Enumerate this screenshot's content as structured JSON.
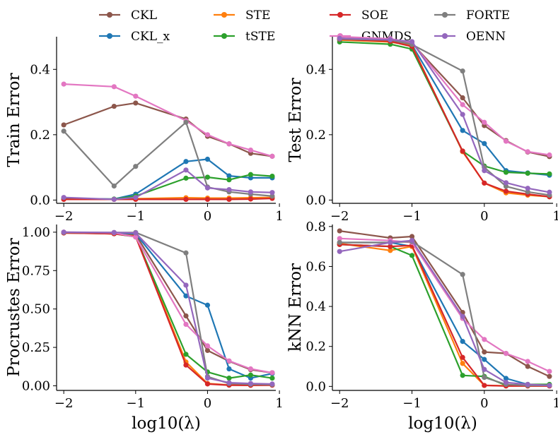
{
  "chart_data": [
    {
      "type": "line",
      "panel": "top-left",
      "title": "",
      "xlabel": "",
      "ylabel": "Train Error",
      "xlim": [
        -2.1,
        0.95
      ],
      "ylim": [
        -0.01,
        0.5
      ],
      "xticks": [
        -2,
        -1,
        0,
        1
      ],
      "xtick_labels": [
        "−2",
        "−1",
        "0",
        "1"
      ],
      "yticks": [
        0.0,
        0.2,
        0.4
      ],
      "ytick_labels": [
        "0.0",
        "0.2",
        "0.4"
      ],
      "x": [
        -2,
        -1.3,
        -1,
        -0.3,
        0,
        0.3,
        0.6,
        0.9
      ],
      "series": [
        {
          "name": "CKL",
          "values": [
            0.23,
            0.287,
            0.297,
            0.248,
            0.195,
            0.172,
            0.143,
            0.134
          ]
        },
        {
          "name": "CKL_x",
          "values": [
            0.004,
            0.003,
            0.018,
            0.118,
            0.125,
            0.074,
            0.068,
            0.068
          ]
        },
        {
          "name": "STE",
          "values": [
            0.003,
            0.002,
            0.004,
            0.007,
            0.006,
            0.006,
            0.007,
            0.008
          ]
        },
        {
          "name": "tSTE",
          "values": [
            0.004,
            0.003,
            0.012,
            0.067,
            0.07,
            0.062,
            0.078,
            0.073
          ]
        },
        {
          "name": "SOE",
          "values": [
            0.002,
            0.002,
            0.002,
            0.002,
            0.002,
            0.002,
            0.003,
            0.005
          ]
        },
        {
          "name": "GNMDS",
          "values": [
            0.355,
            0.347,
            0.318,
            0.243,
            0.2,
            0.172,
            0.153,
            0.134
          ]
        },
        {
          "name": "FORTE",
          "values": [
            0.211,
            0.043,
            0.103,
            0.238,
            0.04,
            0.025,
            0.018,
            0.012
          ]
        },
        {
          "name": "OENN",
          "values": [
            0.008,
            0.002,
            0.008,
            0.092,
            0.037,
            0.032,
            0.025,
            0.023
          ]
        }
      ]
    },
    {
      "type": "line",
      "panel": "top-right",
      "title": "",
      "xlabel": "",
      "ylabel": "Test Error",
      "xlim": [
        -2.1,
        0.95
      ],
      "ylim": [
        -0.01,
        0.5
      ],
      "xticks": [
        -2,
        -1,
        0,
        1
      ],
      "xtick_labels": [
        "−2",
        "−1",
        "0",
        "1"
      ],
      "yticks": [
        0.0,
        0.2,
        0.4
      ],
      "ytick_labels": [
        "0.0",
        "0.2",
        "0.4"
      ],
      "x": [
        -2,
        -1.3,
        -1,
        -0.3,
        0,
        0.3,
        0.6,
        0.9
      ],
      "series": [
        {
          "name": "CKL",
          "values": [
            0.496,
            0.49,
            0.48,
            0.313,
            0.228,
            0.182,
            0.147,
            0.133
          ]
        },
        {
          "name": "CKL_x",
          "values": [
            0.492,
            0.488,
            0.475,
            0.213,
            0.173,
            0.09,
            0.083,
            0.076
          ]
        },
        {
          "name": "STE",
          "values": [
            0.49,
            0.484,
            0.473,
            0.148,
            0.052,
            0.022,
            0.015,
            0.01
          ]
        },
        {
          "name": "tSTE",
          "values": [
            0.484,
            0.477,
            0.462,
            0.15,
            0.104,
            0.085,
            0.082,
            0.08
          ]
        },
        {
          "name": "SOE",
          "values": [
            0.492,
            0.486,
            0.47,
            0.15,
            0.052,
            0.027,
            0.018,
            0.01
          ]
        },
        {
          "name": "GNMDS",
          "values": [
            0.5,
            0.494,
            0.482,
            0.292,
            0.238,
            0.18,
            0.148,
            0.138
          ]
        },
        {
          "name": "FORTE",
          "values": [
            0.493,
            0.49,
            0.476,
            0.395,
            0.1,
            0.042,
            0.025,
            0.015
          ]
        },
        {
          "name": "OENN",
          "values": [
            0.495,
            0.491,
            0.485,
            0.262,
            0.09,
            0.053,
            0.036,
            0.024
          ]
        }
      ]
    },
    {
      "type": "line",
      "panel": "bottom-left",
      "title": "",
      "xlabel": "log10(λ)",
      "ylabel": "Procrustes Error",
      "xlim": [
        -2.1,
        0.95
      ],
      "ylim": [
        -0.03,
        1.05
      ],
      "xticks": [
        -2,
        -1,
        0,
        1
      ],
      "xtick_labels": [
        "−2",
        "−1",
        "0",
        "1"
      ],
      "yticks": [
        0.0,
        0.25,
        0.5,
        0.75,
        1.0
      ],
      "ytick_labels": [
        "0.00",
        "0.25",
        "0.50",
        "0.75",
        "1.00"
      ],
      "x": [
        -2,
        -1.3,
        -1,
        -0.3,
        0,
        0.3,
        0.6,
        0.9
      ],
      "series": [
        {
          "name": "CKL",
          "values": [
            1.0,
            0.99,
            0.985,
            0.455,
            0.23,
            0.16,
            0.105,
            0.085
          ]
        },
        {
          "name": "CKL_x",
          "values": [
            0.998,
            0.995,
            0.99,
            0.585,
            0.525,
            0.11,
            0.05,
            0.08
          ]
        },
        {
          "name": "STE",
          "values": [
            0.995,
            0.99,
            0.975,
            0.155,
            0.015,
            0.005,
            0.004,
            0.005
          ]
        },
        {
          "name": "tSTE",
          "values": [
            0.997,
            0.99,
            0.97,
            0.205,
            0.09,
            0.05,
            0.07,
            0.05
          ]
        },
        {
          "name": "SOE",
          "values": [
            0.995,
            0.99,
            0.972,
            0.135,
            0.012,
            0.004,
            0.003,
            0.004
          ]
        },
        {
          "name": "GNMDS",
          "values": [
            1.0,
            0.996,
            0.968,
            0.4,
            0.26,
            0.162,
            0.11,
            0.085
          ]
        },
        {
          "name": "FORTE",
          "values": [
            0.998,
            0.998,
            0.998,
            0.865,
            0.06,
            0.015,
            0.01,
            0.008
          ]
        },
        {
          "name": "OENN",
          "values": [
            1.0,
            0.998,
            0.995,
            0.655,
            0.05,
            0.02,
            0.015,
            0.012
          ]
        }
      ]
    },
    {
      "type": "line",
      "panel": "bottom-right",
      "title": "",
      "xlabel": "log10(λ)",
      "ylabel": "kNN Error",
      "xlim": [
        -2.1,
        0.95
      ],
      "ylim": [
        -0.02,
        0.81
      ],
      "xticks": [
        -2,
        -1,
        0,
        1
      ],
      "xtick_labels": [
        "−2",
        "−1",
        "0",
        "1"
      ],
      "yticks": [
        0.0,
        0.2,
        0.4,
        0.6,
        0.8
      ],
      "ytick_labels": [
        "0.0",
        "0.2",
        "0.4",
        "0.6",
        "0.8"
      ],
      "x": [
        -2,
        -1.3,
        -1,
        -0.3,
        0,
        0.3,
        0.6,
        0.9
      ],
      "series": [
        {
          "name": "CKL",
          "values": [
            0.778,
            0.743,
            0.75,
            0.37,
            0.172,
            0.165,
            0.1,
            0.05
          ]
        },
        {
          "name": "CKL_x",
          "values": [
            0.72,
            0.72,
            0.7,
            0.225,
            0.135,
            0.04,
            0.01,
            0.005
          ]
        },
        {
          "name": "STE",
          "values": [
            0.715,
            0.68,
            0.7,
            0.115,
            0.005,
            0.003,
            0.003,
            0.003
          ]
        },
        {
          "name": "tSTE",
          "values": [
            0.71,
            0.7,
            0.655,
            0.055,
            0.05,
            0.005,
            0.01,
            0.01
          ]
        },
        {
          "name": "SOE",
          "values": [
            0.71,
            0.7,
            0.705,
            0.145,
            0.005,
            0.002,
            0.002,
            0.002
          ]
        },
        {
          "name": "GNMDS",
          "values": [
            0.74,
            0.73,
            0.72,
            0.34,
            0.235,
            0.165,
            0.125,
            0.075
          ]
        },
        {
          "name": "FORTE",
          "values": [
            0.72,
            0.72,
            0.725,
            0.56,
            0.045,
            0.01,
            0.005,
            0.005
          ]
        },
        {
          "name": "OENN",
          "values": [
            0.675,
            0.72,
            0.73,
            0.35,
            0.085,
            0.02,
            0.01,
            0.005
          ]
        }
      ]
    }
  ],
  "legend": {
    "placement": "top",
    "entries": [
      {
        "name": "CKL",
        "label": "CKL",
        "color": "#8c564b"
      },
      {
        "name": "CKL_x",
        "label": "CKL_x",
        "color": "#1f77b4"
      },
      {
        "name": "STE",
        "label": "STE",
        "color": "#ff7f0e"
      },
      {
        "name": "tSTE",
        "label": "tSTE",
        "color": "#2ca02c"
      },
      {
        "name": "SOE",
        "label": "SOE",
        "color": "#d62728"
      },
      {
        "name": "GNMDS",
        "label": "GNMDS",
        "color": "#e377c2"
      },
      {
        "name": "FORTE",
        "label": "FORTE",
        "color": "#7f7f7f"
      },
      {
        "name": "OENN",
        "label": "OENN",
        "color": "#9467bd"
      }
    ]
  }
}
